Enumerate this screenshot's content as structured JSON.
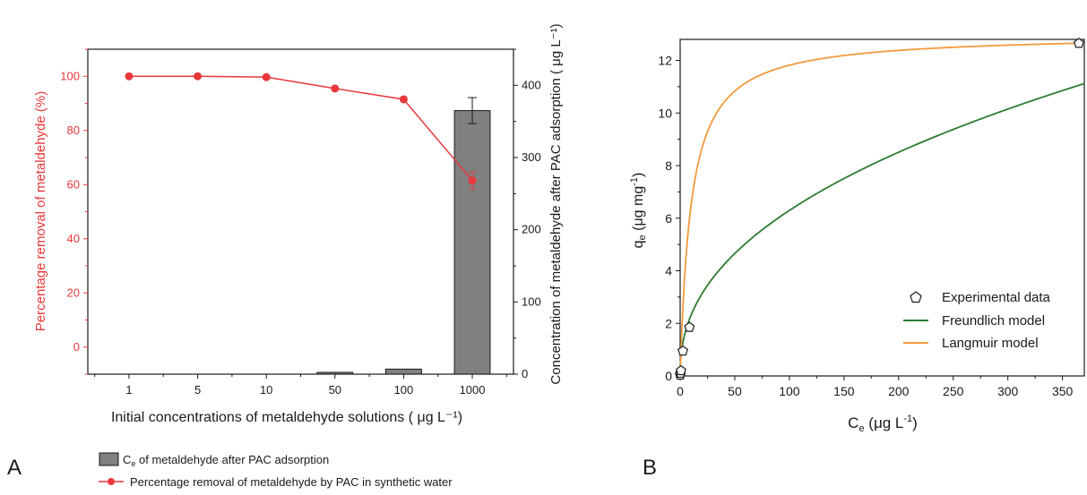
{
  "panels": {
    "a_label": "A",
    "b_label": "B"
  },
  "colors": {
    "red": "#e8373a",
    "bar_fill": "#808080",
    "freundlich": "#2e7d32",
    "langmuir": "#f39a3c",
    "axis": "#1a1a1a"
  },
  "chart_data": [
    {
      "id": "A",
      "type": "bar+line",
      "xlabel": "Initial concentrations of metaldehyde solutions ( μg L⁻¹)",
      "ylabel_left": "Percentage removal of metaldehyde (%)",
      "ylabel_right": "Concentration of metaldehyde after PAC adsorption ( μg L⁻¹)",
      "categories": [
        "1",
        "5",
        "10",
        "50",
        "100",
        "1000"
      ],
      "ylim_left": [
        -10,
        110
      ],
      "yticks_left": [
        0,
        20,
        40,
        60,
        80,
        100
      ],
      "ylim_right": [
        0,
        450
      ],
      "yticks_right": [
        0,
        100,
        200,
        300,
        400
      ],
      "bars": {
        "name": "Ce of metaldehyde after PAC adsorption",
        "values": [
          0,
          0,
          0,
          1,
          7,
          365
        ],
        "errors": [
          0,
          0,
          0,
          0,
          0,
          18
        ]
      },
      "line": {
        "name": "Percentage removal of metaldehyde by PAC in synthetic water",
        "values": [
          100,
          100,
          99.7,
          95.5,
          91.5,
          61.5
        ],
        "errors": [
          0,
          0,
          0,
          0,
          0,
          3
        ]
      },
      "legend": {
        "bar_label_main": "C",
        "bar_label_sub": "e",
        "bar_label_rest": " of metaldehyde after PAC adsorption",
        "line_label": "Percentage removal of metaldehyde by PAC in synthetic water",
        "placement": "bottom"
      }
    },
    {
      "id": "B",
      "type": "scatter+line",
      "xlabel": "Ce (μg L⁻¹)",
      "ylabel": "qe (μg mg⁻¹)",
      "xlim": [
        0,
        370
      ],
      "xticks": [
        0,
        50,
        100,
        150,
        200,
        250,
        300,
        350
      ],
      "ylim": [
        0,
        12.8
      ],
      "yticks": [
        0,
        2,
        4,
        6,
        8,
        10,
        12
      ],
      "experimental": {
        "name": "Experimental data",
        "x": [
          0.05,
          0.3,
          0.8,
          2.5,
          8.5,
          365
        ],
        "y": [
          0.03,
          0.1,
          0.2,
          0.95,
          1.85,
          12.65
        ]
      },
      "freundlich": {
        "name": "Freundlich model",
        "K": 0.85,
        "n": 2.3
      },
      "langmuir": {
        "name": "Langmuir model",
        "qmax": 13.0,
        "KL": 0.1
      },
      "legend": {
        "placement": "bottom-right",
        "experimental": "Experimental data",
        "freundlich": "Freundlich model",
        "langmuir": "Langmuir model"
      }
    }
  ]
}
